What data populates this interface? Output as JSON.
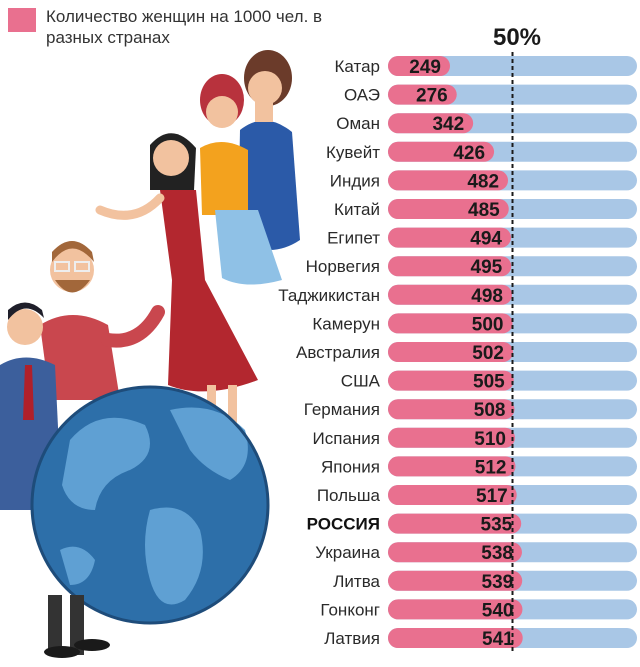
{
  "legend": {
    "text": "Количество женщин на 1000 чел. в разных странах",
    "color": "#e9708f"
  },
  "colors": {
    "female": "#e9708f",
    "background_bar": "#a9c7e6",
    "marker_line": "#1a1a1a"
  },
  "chart_data": {
    "type": "bar",
    "orientation": "horizontal",
    "title": "",
    "xlabel": "",
    "ylabel": "",
    "xlim": [
      0,
      1000
    ],
    "reference_line": {
      "value": 500,
      "label": "50%"
    },
    "categories": [
      "Катар",
      "ОАЭ",
      "Оман",
      "Кувейт",
      "Индия",
      "Китай",
      "Египет",
      "Норвегия",
      "Таджикистан",
      "Камерун",
      "Австралия",
      "США",
      "Германия",
      "Испания",
      "Япония",
      "Польша",
      "РОССИЯ",
      "Украина",
      "Литва",
      "Гонконг",
      "Латвия"
    ],
    "highlight": "РОССИЯ",
    "series": [
      {
        "name": "Количество женщин на 1000 чел.",
        "values": [
          249,
          276,
          342,
          426,
          482,
          485,
          494,
          495,
          498,
          500,
          502,
          505,
          508,
          510,
          512,
          517,
          535,
          538,
          539,
          540,
          541
        ]
      }
    ]
  }
}
